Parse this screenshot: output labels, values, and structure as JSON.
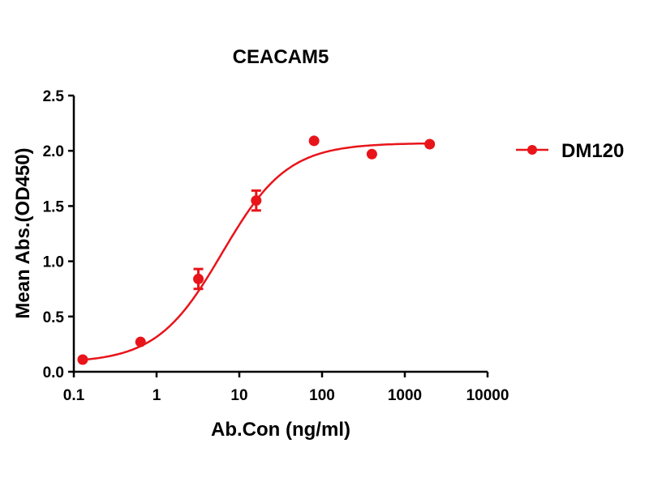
{
  "chart_data": {
    "type": "scatter",
    "title": "CEACAM5",
    "xlabel": "Ab.Con (ng/ml)",
    "ylabel": "Mean Abs.(OD450)",
    "xscale": "log",
    "xlim": [
      0.1,
      10000
    ],
    "ylim": [
      0,
      2.5
    ],
    "xticks": [
      0.1,
      1,
      10,
      100,
      1000,
      10000
    ],
    "xtick_labels": [
      "0.1",
      "1",
      "10",
      "100",
      "1000",
      "10000"
    ],
    "yticks": [
      0,
      0.5,
      1,
      1.5,
      2,
      2.5
    ],
    "ytick_labels": [
      "0.0",
      "0.5",
      "1.0",
      "1.5",
      "2.0",
      "2.5"
    ],
    "grid": false,
    "legend_position": "right",
    "fit": "sigmoidal 4PL curve",
    "series": [
      {
        "name": "DM120",
        "color": "#e8141a",
        "x": [
          0.128,
          0.64,
          3.2,
          16,
          80,
          400,
          2000
        ],
        "y": [
          0.11,
          0.27,
          0.84,
          1.55,
          2.09,
          1.97,
          2.06
        ],
        "error": [
          0,
          0,
          0.09,
          0.09,
          0,
          0,
          0
        ]
      }
    ]
  }
}
